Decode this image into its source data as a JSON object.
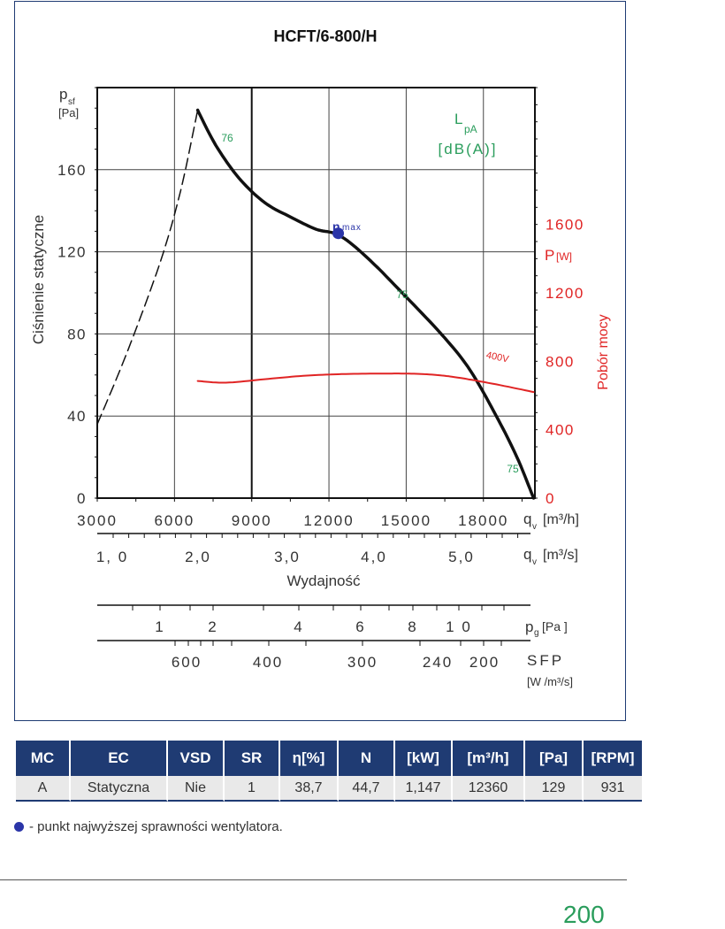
{
  "chart_data": {
    "type": "line",
    "title": "HCFT/6-800/H",
    "xlabel": "Wydajność",
    "ylabel": "Ciśnienie statyczne",
    "y_unit": "[Pa]",
    "y2label": "Pobór mocy",
    "y2_unit": "P",
    "y2_unit_sub": "[W]",
    "xlim": [
      3000,
      20000
    ],
    "ylim": [
      0,
      200
    ],
    "y2lim": [
      0,
      2400
    ],
    "x_ticks": [
      "3000",
      "6000",
      "9000",
      "12000",
      "15000",
      "18000"
    ],
    "x_unit": "q",
    "x_unit_sub": "v",
    "x_unit_rest": "[m³/h]",
    "x2_ticks": [
      "1, 0",
      "2,0",
      "3,0",
      "4,0",
      "5,0"
    ],
    "x2_unit_rest": "[m³/s]",
    "y_ticks": [
      "0",
      "40",
      "80",
      "120",
      "160"
    ],
    "y2_ticks": [
      "0",
      "400",
      "800",
      "1200",
      "1600"
    ],
    "pg_ticks": [
      "1",
      "2",
      "4",
      "6",
      "8",
      "1 0"
    ],
    "pg_unit": "p",
    "pg_unit_sub": "g",
    "pg_unit_rest": "[Pa ]",
    "sfp_ticks": [
      "600",
      "400",
      "300",
      "240",
      "200"
    ],
    "sfp_label": "SFP",
    "sfp_unit": "[W /m³/s]",
    "lpa_label": "L",
    "lpa_sub": "pA",
    "lpa_unit": "[dB(A)]",
    "eta_label": "η",
    "eta_sub": "max",
    "noise_labels": [
      "76",
      "75",
      "75"
    ],
    "curve_label": "400V",
    "series": [
      {
        "kind": "pressure",
        "color": "#111111",
        "x": [
          6900,
          7600,
          8500,
          9500,
          10500,
          11500,
          12400,
          13500,
          15000,
          16500,
          17500,
          18500,
          19300,
          19950
        ],
        "y": [
          189,
          172,
          156,
          144,
          137,
          131,
          128,
          117,
          98,
          78,
          62,
          40,
          20,
          0
        ]
      },
      {
        "kind": "stall",
        "color": "#111111",
        "x": [
          3000,
          4000,
          5000,
          5700,
          6300,
          6900
        ],
        "y": [
          36,
          66,
          99,
          125,
          153,
          189
        ]
      },
      {
        "name": "400V",
        "kind": "power",
        "color": "#e02424",
        "x": [
          6900,
          8000,
          9500,
          11000,
          12500,
          14000,
          15000,
          16000,
          17000,
          18500,
          19950
        ],
        "y": [
          685,
          675,
          695,
          715,
          725,
          728,
          728,
          722,
          705,
          665,
          620
        ]
      }
    ],
    "optimum_point": {
      "x": 12360,
      "y": 129
    }
  },
  "table": {
    "headers": [
      "MC",
      "EC",
      "VSD",
      "SR",
      "η[%]",
      "N",
      "[kW]",
      "[m³/h]",
      "[Pa]",
      "[RPM]"
    ],
    "row": [
      "A",
      "Statyczna",
      "Nie",
      "1",
      "38,7",
      "44,7",
      "1,147",
      "12360",
      "129",
      "931"
    ]
  },
  "legend_note": "- punkt najwyższej sprawności wentylatora.",
  "page_number": "200",
  "colors": {
    "frame": "#1f3b73",
    "table_header": "#1f3b73",
    "noise": "#2a9d5c",
    "power": "#e02424",
    "optimum": "#2b35a8"
  }
}
